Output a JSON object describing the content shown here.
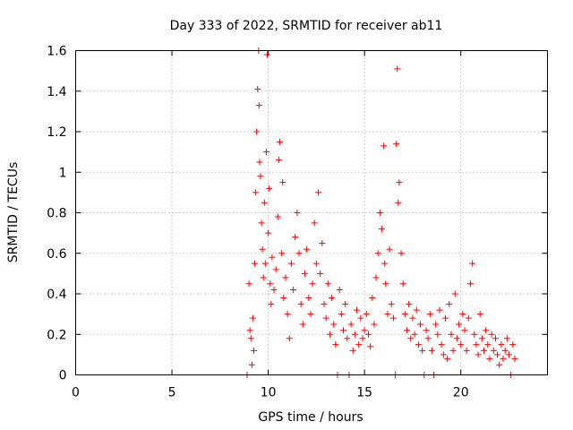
{
  "chart_data": {
    "type": "scatter",
    "title": "Day 333 of 2022, SRMTID for receiver ab11",
    "xlabel": "GPS time / hours",
    "ylabel": "SRMTID / TECUs",
    "xlim": [
      0,
      24.5
    ],
    "ylim": [
      0,
      1.6
    ],
    "x_ticks": [
      0,
      5,
      10,
      15,
      20
    ],
    "x_tick_labels": [
      "0",
      "5",
      "10",
      "15",
      "20"
    ],
    "y_ticks": [
      0,
      0.2,
      0.4,
      0.6,
      0.8,
      1.0,
      1.2,
      1.4,
      1.6
    ],
    "y_tick_labels": [
      "0",
      "0.2",
      "0.4",
      "0.6",
      "0.8",
      "1",
      "1.2",
      "1.4",
      "1.6"
    ],
    "grid": true,
    "marker": "+",
    "marker_color": "#ff0000",
    "series": [
      {
        "name": "SRMTID",
        "points": [
          [
            8.9,
            0.0
          ],
          [
            9.0,
            0.45
          ],
          [
            9.05,
            0.22
          ],
          [
            9.1,
            0.18
          ],
          [
            9.15,
            0.05
          ],
          [
            9.2,
            0.28
          ],
          [
            9.25,
            0.12
          ],
          [
            9.3,
            0.55
          ],
          [
            9.35,
            0.9
          ],
          [
            9.4,
            1.2
          ],
          [
            9.45,
            1.41
          ],
          [
            9.5,
            1.6
          ],
          [
            9.52,
            1.33
          ],
          [
            9.55,
            1.05
          ],
          [
            9.6,
            0.98
          ],
          [
            9.65,
            0.75
          ],
          [
            9.7,
            0.62
          ],
          [
            9.75,
            0.48
          ],
          [
            9.8,
            0.85
          ],
          [
            9.85,
            0.55
          ],
          [
            9.9,
            1.1
          ],
          [
            9.95,
            1.58
          ],
          [
            10.0,
            0.7
          ],
          [
            10.05,
            0.92
          ],
          [
            10.1,
            0.45
          ],
          [
            10.15,
            0.35
          ],
          [
            10.2,
            0.58
          ],
          [
            10.3,
            0.42
          ],
          [
            10.4,
            0.52
          ],
          [
            10.5,
            0.78
          ],
          [
            10.55,
            1.06
          ],
          [
            10.6,
            1.15
          ],
          [
            10.7,
            0.6
          ],
          [
            10.75,
            0.95
          ],
          [
            10.8,
            0.38
          ],
          [
            10.9,
            0.48
          ],
          [
            11.0,
            0.3
          ],
          [
            11.1,
            0.18
          ],
          [
            11.2,
            0.55
          ],
          [
            11.3,
            0.42
          ],
          [
            11.4,
            0.68
          ],
          [
            11.5,
            0.8
          ],
          [
            11.6,
            0.6
          ],
          [
            11.7,
            0.35
          ],
          [
            11.8,
            0.25
          ],
          [
            11.9,
            0.5
          ],
          [
            12.0,
            0.62
          ],
          [
            12.1,
            0.38
          ],
          [
            12.2,
            0.3
          ],
          [
            12.3,
            0.45
          ],
          [
            12.4,
            0.75
          ],
          [
            12.5,
            0.55
          ],
          [
            12.6,
            0.9
          ],
          [
            12.7,
            0.5
          ],
          [
            12.8,
            0.65
          ],
          [
            12.9,
            0.35
          ],
          [
            13.0,
            0.28
          ],
          [
            13.1,
            0.45
          ],
          [
            13.2,
            0.2
          ],
          [
            13.3,
            0.38
          ],
          [
            13.4,
            0.25
          ],
          [
            13.5,
            0.15
          ],
          [
            13.6,
            0.0
          ],
          [
            13.7,
            0.42
          ],
          [
            13.8,
            0.3
          ],
          [
            13.9,
            0.22
          ],
          [
            14.0,
            0.35
          ],
          [
            14.1,
            0.18
          ],
          [
            14.2,
            0.0
          ],
          [
            14.3,
            0.25
          ],
          [
            14.4,
            0.12
          ],
          [
            14.5,
            0.2
          ],
          [
            14.6,
            0.32
          ],
          [
            14.7,
            0.15
          ],
          [
            14.8,
            0.28
          ],
          [
            14.9,
            0.18
          ],
          [
            15.0,
            0.22
          ],
          [
            15.1,
            0.3
          ],
          [
            15.2,
            0.2
          ],
          [
            15.3,
            0.14
          ],
          [
            15.4,
            0.38
          ],
          [
            15.5,
            0.25
          ],
          [
            15.6,
            0.48
          ],
          [
            15.7,
            0.6
          ],
          [
            15.8,
            0.8
          ],
          [
            15.9,
            0.72
          ],
          [
            16.0,
            1.13
          ],
          [
            16.05,
            0.55
          ],
          [
            16.1,
            0.45
          ],
          [
            16.2,
            0.3
          ],
          [
            16.3,
            0.62
          ],
          [
            16.4,
            0.35
          ],
          [
            16.5,
            0.28
          ],
          [
            16.6,
            0.0
          ],
          [
            16.65,
            1.14
          ],
          [
            16.7,
            1.51
          ],
          [
            16.75,
            0.85
          ],
          [
            16.8,
            0.95
          ],
          [
            16.9,
            0.6
          ],
          [
            17.0,
            0.45
          ],
          [
            17.1,
            0.3
          ],
          [
            17.2,
            0.22
          ],
          [
            17.3,
            0.35
          ],
          [
            17.4,
            0.18
          ],
          [
            17.5,
            0.28
          ],
          [
            17.6,
            0.2
          ],
          [
            17.7,
            0.32
          ],
          [
            17.8,
            0.15
          ],
          [
            17.9,
            0.25
          ],
          [
            18.0,
            0.12
          ],
          [
            18.1,
            0.0
          ],
          [
            18.2,
            0.22
          ],
          [
            18.3,
            0.18
          ],
          [
            18.4,
            0.3
          ],
          [
            18.5,
            0.12
          ],
          [
            18.6,
            0.0
          ],
          [
            18.7,
            0.25
          ],
          [
            18.8,
            0.2
          ],
          [
            18.9,
            0.32
          ],
          [
            19.0,
            0.15
          ],
          [
            19.1,
            0.1
          ],
          [
            19.2,
            0.28
          ],
          [
            19.3,
            0.08
          ],
          [
            19.4,
            0.35
          ],
          [
            19.5,
            0.2
          ],
          [
            19.6,
            0.12
          ],
          [
            19.7,
            0.4
          ],
          [
            19.8,
            0.18
          ],
          [
            19.9,
            0.25
          ],
          [
            20.0,
            0.15
          ],
          [
            20.1,
            0.3
          ],
          [
            20.2,
            0.22
          ],
          [
            20.3,
            0.12
          ],
          [
            20.4,
            0.28
          ],
          [
            20.5,
            0.45
          ],
          [
            20.6,
            0.55
          ],
          [
            20.7,
            0.2
          ],
          [
            20.8,
            0.15
          ],
          [
            20.9,
            0.1
          ],
          [
            21.0,
            0.3
          ],
          [
            21.1,
            0.18
          ],
          [
            21.2,
            0.12
          ],
          [
            21.3,
            0.22
          ],
          [
            21.4,
            0.15
          ],
          [
            21.5,
            0.08
          ],
          [
            21.6,
            0.2
          ],
          [
            21.7,
            0.12
          ],
          [
            21.8,
            0.18
          ],
          [
            21.9,
            0.1
          ],
          [
            22.0,
            0.05
          ],
          [
            22.1,
            0.15
          ],
          [
            22.2,
            0.08
          ],
          [
            22.3,
            0.12
          ],
          [
            22.4,
            0.18
          ],
          [
            22.5,
            0.1
          ],
          [
            22.6,
            0.0
          ],
          [
            22.7,
            0.15
          ],
          [
            22.8,
            0.08
          ]
        ]
      }
    ]
  }
}
